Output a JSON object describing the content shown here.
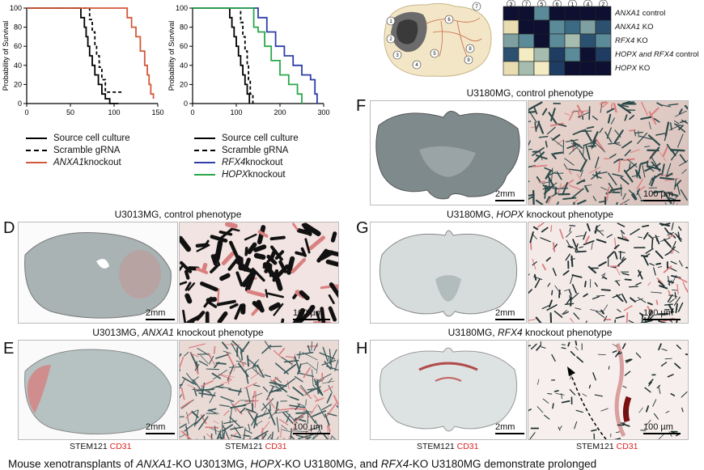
{
  "chart_data": [
    {
      "type": "line",
      "ylabel": "Probability of Survival",
      "xlim": [
        0,
        150
      ],
      "ylim": [
        0,
        100
      ],
      "xticks": [
        "0",
        "50",
        "100",
        "150"
      ],
      "yticks": [
        "0",
        "20",
        "40",
        "60",
        "80",
        "100"
      ],
      "legend": "below",
      "series": [
        {
          "name": "Source cell culture",
          "style": "solid",
          "color": "#000000",
          "points": [
            [
              0,
              100
            ],
            [
              60,
              100
            ],
            [
              62,
              90
            ],
            [
              66,
              80
            ],
            [
              68,
              70
            ],
            [
              70,
              60
            ],
            [
              72,
              50
            ],
            [
              75,
              40
            ],
            [
              78,
              30
            ],
            [
              82,
              20
            ],
            [
              86,
              10
            ],
            [
              90,
              5
            ],
            [
              95,
              0
            ],
            [
              105,
              0
            ]
          ]
        },
        {
          "name": "Scramble gRNA",
          "style": "dashed",
          "color": "#000000",
          "points": [
            [
              0,
              100
            ],
            [
              70,
              100
            ],
            [
              72,
              88
            ],
            [
              75,
              75
            ],
            [
              78,
              62
            ],
            [
              80,
              50
            ],
            [
              83,
              38
            ],
            [
              86,
              25
            ],
            [
              90,
              12
            ],
            [
              110,
              12
            ]
          ]
        },
        {
          "name": "ANXA1 knockout",
          "style": "solid",
          "color": "#d4583a",
          "points": [
            [
              0,
              100
            ],
            [
              110,
              100
            ],
            [
              115,
              90
            ],
            [
              120,
              80
            ],
            [
              125,
              70
            ],
            [
              130,
              55
            ],
            [
              135,
              40
            ],
            [
              138,
              30
            ],
            [
              140,
              20
            ],
            [
              142,
              10
            ],
            [
              145,
              5
            ]
          ]
        }
      ]
    },
    {
      "type": "line",
      "ylabel": "Probability of Survival",
      "xlim": [
        0,
        300
      ],
      "ylim": [
        0,
        100
      ],
      "xticks": [
        "0",
        "100",
        "200",
        "300"
      ],
      "yticks": [
        "0",
        "20",
        "40",
        "60",
        "80",
        "100"
      ],
      "legend": "below",
      "series": [
        {
          "name": "Source cell culture",
          "style": "solid",
          "color": "#000000",
          "points": [
            [
              0,
              100
            ],
            [
              80,
              100
            ],
            [
              85,
              90
            ],
            [
              90,
              80
            ],
            [
              95,
              70
            ],
            [
              100,
              60
            ],
            [
              105,
              50
            ],
            [
              110,
              40
            ],
            [
              115,
              30
            ],
            [
              120,
              20
            ],
            [
              125,
              10
            ],
            [
              130,
              0
            ]
          ]
        },
        {
          "name": "Scramble gRNA",
          "style": "dashed",
          "color": "#000000",
          "points": [
            [
              0,
              100
            ],
            [
              100,
              100
            ],
            [
              110,
              85
            ],
            [
              115,
              70
            ],
            [
              120,
              55
            ],
            [
              125,
              40
            ],
            [
              128,
              25
            ],
            [
              132,
              10
            ],
            [
              138,
              0
            ]
          ]
        },
        {
          "name": "RFX4 knockout",
          "style": "solid",
          "color": "#2e3ea8",
          "points": [
            [
              0,
              100
            ],
            [
              140,
              100
            ],
            [
              150,
              90
            ],
            [
              170,
              75
            ],
            [
              190,
              60
            ],
            [
              210,
              50
            ],
            [
              230,
              40
            ],
            [
              250,
              30
            ],
            [
              270,
              25
            ],
            [
              280,
              10
            ],
            [
              285,
              0
            ]
          ]
        },
        {
          "name": "HOPX knockout",
          "style": "solid",
          "color": "#2aa84a",
          "points": [
            [
              0,
              100
            ],
            [
              130,
              100
            ],
            [
              140,
              80
            ],
            [
              150,
              75
            ],
            [
              165,
              60
            ],
            [
              180,
              45
            ],
            [
              200,
              30
            ],
            [
              220,
              20
            ],
            [
              240,
              10
            ],
            [
              250,
              0
            ]
          ]
        }
      ]
    }
  ],
  "legend_left": {
    "items": [
      {
        "pre": "Source cell culture",
        "ital": "",
        "post": ""
      },
      {
        "pre": "Scramble gRNA",
        "ital": "",
        "post": ""
      },
      {
        "pre": "",
        "ital": "ANXA1",
        "post": " knockout"
      }
    ]
  },
  "legend_right": {
    "items": [
      {
        "pre": "Source cell culture",
        "ital": "",
        "post": ""
      },
      {
        "pre": "Scramble gRNA",
        "ital": "",
        "post": ""
      },
      {
        "pre": "",
        "ital": "RFX4",
        "post": " knockout"
      },
      {
        "pre": "",
        "ital": "HOPX",
        "post": " knockout"
      }
    ]
  },
  "brain_diagram": {
    "numbers": [
      "1",
      "2",
      "3",
      "4",
      "5",
      "6",
      "7",
      "8",
      "9"
    ]
  },
  "heatmap": {
    "col_numbers": [
      "3",
      "7",
      "5",
      "6",
      "1",
      "4",
      "2"
    ],
    "rows": [
      {
        "ital": "ANXA1",
        "post": " control"
      },
      {
        "ital": "ANXA1",
        "post": " KO"
      },
      {
        "ital": "RFX4",
        "post": " KO"
      },
      {
        "ital": "HOPX and RFX4",
        "post": " control"
      },
      {
        "ital": "HOPX",
        "post": " KO"
      }
    ],
    "cells": [
      [
        "#0d1030",
        "#0d1030",
        "#5b8a98",
        "#0d1030",
        "#0d1030",
        "#0d1030",
        "#0d1030"
      ],
      [
        "#e8dcb0",
        "#0d1030",
        "#0d1030",
        "#5b8a98",
        "#3c6a84",
        "#7fa0a0",
        "#2c5070"
      ],
      [
        "#7fa0a0",
        "#5b8a98",
        "#0d1030",
        "#5b8a98",
        "#a6bcae",
        "#2c5070",
        "#5b8a98"
      ],
      [
        "#2c5070",
        "#f3ecc2",
        "#a6bcae",
        "#1f3c62",
        "#5b8a98",
        "#0d1030",
        "#1f3c62"
      ],
      [
        "#e8dcb0",
        "#a6bcae",
        "#f3ecc2",
        "#1f3c62",
        "#0d1030",
        "#0d1030",
        "#0d1030"
      ]
    ]
  },
  "panels": {
    "D": {
      "letter": "D",
      "title": "U3013MG, control phenotype",
      "scale_low": "2mm",
      "scale_high": "100 µm"
    },
    "E": {
      "letter": "E",
      "title_pre": "U3013MG, ",
      "title_ital": "ANXA1",
      "title_post": " knockout phenotype",
      "scale_low": "2mm",
      "scale_high": "100 µm"
    },
    "F": {
      "letter": "F",
      "title": "U3180MG, control phenotype",
      "scale_low": "2mm",
      "scale_high": "100 µm"
    },
    "G": {
      "letter": "G",
      "title_pre": "U3180MG, ",
      "title_ital": "HOPX",
      "title_post": " knockout phenotype",
      "scale_low": "2mm",
      "scale_high": "100 µm"
    },
    "H": {
      "letter": "H",
      "title_pre": "U3180MG, ",
      "title_ital": "RFX4",
      "title_post": " knockout phenotype",
      "scale_low": "2mm",
      "scale_high": "100 µm"
    }
  },
  "stain": {
    "a": "STEM121",
    "b": "CD31"
  },
  "caption": {
    "pre": "Mouse xenotransplants of ",
    "i1": "ANXA1",
    "m1": "-KO U3013MG, ",
    "i2": "HOPX",
    "m2": "-KO U3180MG, and ",
    "i3": "RFX4",
    "post": "-KO U3180MG demonstrate prolonged"
  }
}
